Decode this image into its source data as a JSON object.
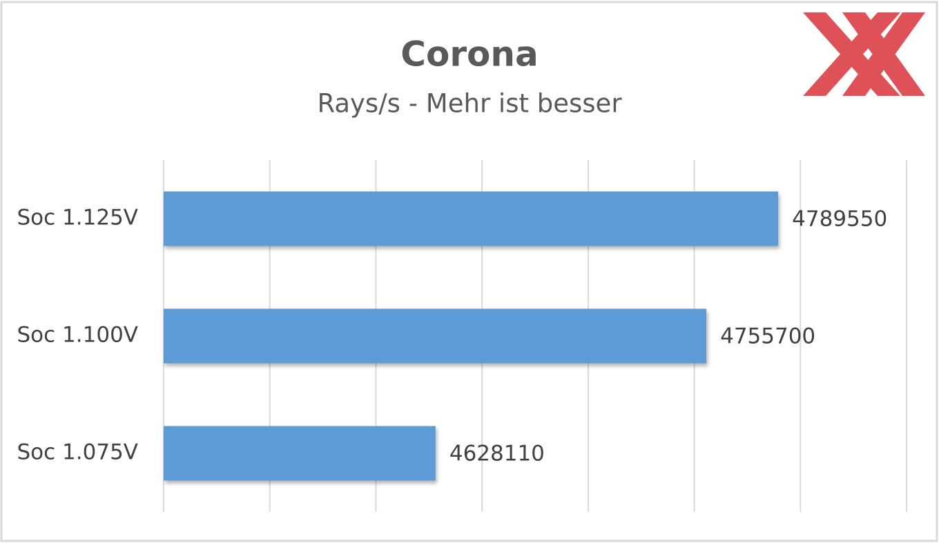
{
  "chart_data": {
    "type": "barh",
    "title": "Corona",
    "subtitle": "Rays/s - Mehr ist besser",
    "categories": [
      "Soc 1.125V",
      "Soc 1.100V",
      "Soc 1.075V"
    ],
    "values": [
      4789550,
      4755700,
      4628110
    ],
    "color": "#5b9bd5",
    "xlim": [
      4500000,
      4850000
    ],
    "xticks": [
      4500000,
      4550000,
      4600000,
      4650000,
      4700000,
      4750000,
      4800000,
      4850000
    ],
    "grid": true
  }
}
